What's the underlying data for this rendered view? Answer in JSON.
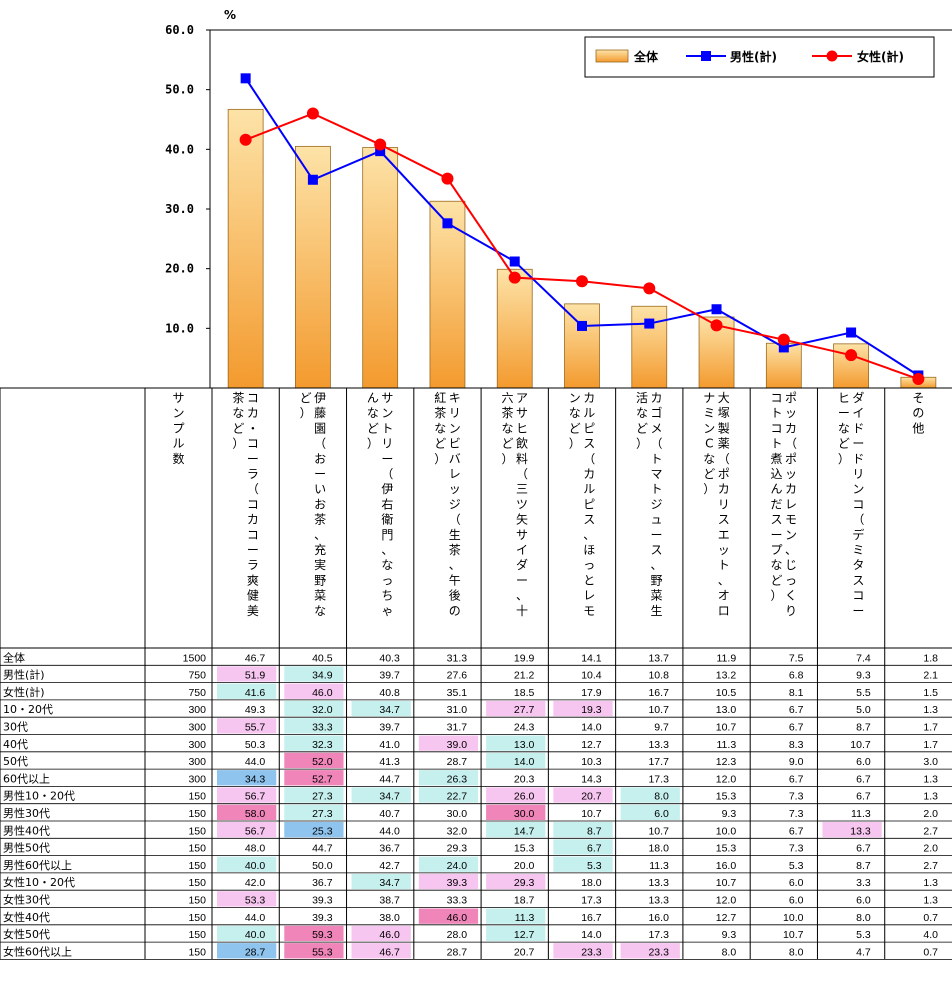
{
  "chart_data": {
    "type": "bar",
    "unit": "%",
    "ylim": [
      0,
      60
    ],
    "yticks": [
      "60.0",
      "50.0",
      "40.0",
      "30.0",
      "20.0",
      "10.0"
    ],
    "categories": [
      "コカ・コーラ（コカコーラ爽健美茶など）",
      "伊藤園（おーいお茶、充実野菜など）",
      "サントリー（伊右衛門、なっちゃんなど）",
      "キリンビバレッジ（生茶、午後の紅茶など）",
      "アサヒ飲料（三ツ矢サイダー、十六茶など）",
      "カルピス（カルピス、ほっとレモンなど）",
      "カゴメ（トマトジュース、野菜生活など）",
      "大塚製薬（ポカリスエット、オロナミンCなど）",
      "ポッカ（ポッカレモン、じっくりコトコト煮込んだスープなど）",
      "ダイドードリンコ（デミタスコーヒーなど）",
      "その他"
    ],
    "series": [
      {
        "name": "全体",
        "type": "bar",
        "color": "#f6a73c",
        "values": [
          46.7,
          40.5,
          40.3,
          31.3,
          19.9,
          14.1,
          13.7,
          11.9,
          7.5,
          7.4,
          1.8
        ]
      },
      {
        "name": "男性(計)",
        "type": "line",
        "color": "#0000ff",
        "marker": "square",
        "values": [
          51.9,
          34.9,
          39.7,
          27.6,
          21.2,
          10.4,
          10.8,
          13.2,
          6.8,
          9.3,
          2.1
        ]
      },
      {
        "name": "女性(計)",
        "type": "line",
        "color": "#ff0000",
        "marker": "circle",
        "values": [
          41.6,
          46.0,
          40.8,
          35.1,
          18.5,
          17.9,
          16.7,
          10.5,
          8.1,
          5.5,
          1.5
        ]
      }
    ],
    "legend_position": "top-right",
    "table": {
      "sample_header": "サンプル数",
      "rows": [
        {
          "label": "全体",
          "n": "1500",
          "values": [
            "46.7",
            "40.5",
            "40.3",
            "31.3",
            "19.9",
            "14.1",
            "13.7",
            "11.9",
            "7.5",
            "7.4",
            "1.8"
          ],
          "shading": [
            "",
            "",
            "",
            "",
            "",
            "",
            "",
            "",
            "",
            "",
            ""
          ]
        },
        {
          "label": "男性(計)",
          "n": "750",
          "values": [
            "51.9",
            "34.9",
            "39.7",
            "27.6",
            "21.2",
            "10.4",
            "10.8",
            "13.2",
            "6.8",
            "9.3",
            "2.1"
          ],
          "shading": [
            "p",
            "c",
            "",
            "",
            "",
            "",
            "",
            "",
            "",
            "",
            ""
          ]
        },
        {
          "label": "女性(計)",
          "n": "750",
          "values": [
            "41.6",
            "46.0",
            "40.8",
            "35.1",
            "18.5",
            "17.9",
            "16.7",
            "10.5",
            "8.1",
            "5.5",
            "1.5"
          ],
          "shading": [
            "c",
            "p",
            "",
            "",
            "",
            "",
            "",
            "",
            "",
            "",
            ""
          ]
        },
        {
          "label": "10・20代",
          "n": "300",
          "values": [
            "49.3",
            "32.0",
            "34.7",
            "31.0",
            "27.7",
            "19.3",
            "10.7",
            "13.0",
            "6.7",
            "5.0",
            "1.3"
          ],
          "shading": [
            "",
            "c",
            "c",
            "",
            "p",
            "p",
            "",
            "",
            "",
            "",
            ""
          ]
        },
        {
          "label": "30代",
          "n": "300",
          "values": [
            "55.7",
            "33.3",
            "39.7",
            "31.7",
            "24.3",
            "14.0",
            "9.7",
            "10.7",
            "6.7",
            "8.7",
            "1.7"
          ],
          "shading": [
            "p",
            "c",
            "",
            "",
            "",
            "",
            "",
            "",
            "",
            "",
            ""
          ]
        },
        {
          "label": "40代",
          "n": "300",
          "values": [
            "50.3",
            "32.3",
            "41.0",
            "39.0",
            "13.0",
            "12.7",
            "13.3",
            "11.3",
            "8.3",
            "10.7",
            "1.7"
          ],
          "shading": [
            "",
            "c",
            "",
            "p",
            "c",
            "",
            "",
            "",
            "",
            "",
            ""
          ]
        },
        {
          "label": "50代",
          "n": "300",
          "values": [
            "44.0",
            "52.0",
            "41.3",
            "28.7",
            "14.0",
            "10.3",
            "17.7",
            "12.3",
            "9.0",
            "6.0",
            "3.0"
          ],
          "shading": [
            "",
            "pd",
            "",
            "",
            "c",
            "",
            "",
            "",
            "",
            "",
            ""
          ]
        },
        {
          "label": "60代以上",
          "n": "300",
          "values": [
            "34.3",
            "52.7",
            "44.7",
            "26.3",
            "20.3",
            "14.3",
            "17.3",
            "12.0",
            "6.7",
            "6.7",
            "1.3"
          ],
          "shading": [
            "b",
            "pd",
            "",
            "c",
            "",
            "",
            "",
            "",
            "",
            "",
            ""
          ]
        },
        {
          "label": "男性10・20代",
          "n": "150",
          "values": [
            "56.7",
            "27.3",
            "34.7",
            "22.7",
            "26.0",
            "20.7",
            "8.0",
            "15.3",
            "7.3",
            "6.7",
            "1.3"
          ],
          "shading": [
            "p",
            "c",
            "c",
            "c",
            "p",
            "p",
            "c",
            "",
            "",
            "",
            ""
          ]
        },
        {
          "label": "男性30代",
          "n": "150",
          "values": [
            "58.0",
            "27.3",
            "40.7",
            "30.0",
            "30.0",
            "10.7",
            "6.0",
            "9.3",
            "7.3",
            "11.3",
            "2.0"
          ],
          "shading": [
            "pd",
            "c",
            "",
            "",
            "pd",
            "",
            "c",
            "",
            "",
            "",
            ""
          ]
        },
        {
          "label": "男性40代",
          "n": "150",
          "values": [
            "56.7",
            "25.3",
            "44.0",
            "32.0",
            "14.7",
            "8.7",
            "10.7",
            "10.0",
            "6.7",
            "13.3",
            "2.7"
          ],
          "shading": [
            "p",
            "b",
            "",
            "",
            "c",
            "c",
            "",
            "",
            "",
            "p",
            ""
          ]
        },
        {
          "label": "男性50代",
          "n": "150",
          "values": [
            "48.0",
            "44.7",
            "36.7",
            "29.3",
            "15.3",
            "6.7",
            "18.0",
            "15.3",
            "7.3",
            "6.7",
            "2.0"
          ],
          "shading": [
            "",
            "",
            "",
            "",
            "",
            "c",
            "",
            "",
            "",
            "",
            ""
          ]
        },
        {
          "label": "男性60代以上",
          "n": "150",
          "values": [
            "40.0",
            "50.0",
            "42.7",
            "24.0",
            "20.0",
            "5.3",
            "11.3",
            "16.0",
            "5.3",
            "8.7",
            "2.7"
          ],
          "shading": [
            "c",
            "",
            "",
            "c",
            "",
            "c",
            "",
            "",
            "",
            "",
            ""
          ]
        },
        {
          "label": "女性10・20代",
          "n": "150",
          "values": [
            "42.0",
            "36.7",
            "34.7",
            "39.3",
            "29.3",
            "18.0",
            "13.3",
            "10.7",
            "6.0",
            "3.3",
            "1.3"
          ],
          "shading": [
            "",
            "",
            "c",
            "p",
            "p",
            "",
            "",
            "",
            "",
            "",
            ""
          ]
        },
        {
          "label": "女性30代",
          "n": "150",
          "values": [
            "53.3",
            "39.3",
            "38.7",
            "33.3",
            "18.7",
            "17.3",
            "13.3",
            "12.0",
            "6.0",
            "6.0",
            "1.3"
          ],
          "shading": [
            "p",
            "",
            "",
            "",
            "",
            "",
            "",
            "",
            "",
            "",
            ""
          ]
        },
        {
          "label": "女性40代",
          "n": "150",
          "values": [
            "44.0",
            "39.3",
            "38.0",
            "46.0",
            "11.3",
            "16.7",
            "16.0",
            "12.7",
            "10.0",
            "8.0",
            "0.7"
          ],
          "shading": [
            "",
            "",
            "",
            "pd",
            "c",
            "",
            "",
            "",
            "",
            "",
            ""
          ]
        },
        {
          "label": "女性50代",
          "n": "150",
          "values": [
            "40.0",
            "59.3",
            "46.0",
            "28.0",
            "12.7",
            "14.0",
            "17.3",
            "9.3",
            "10.7",
            "5.3",
            "4.0"
          ],
          "shading": [
            "c",
            "pd",
            "p",
            "",
            "c",
            "",
            "",
            "",
            "",
            "",
            ""
          ]
        },
        {
          "label": "女性60代以上",
          "n": "150",
          "values": [
            "28.7",
            "55.3",
            "46.7",
            "28.7",
            "20.7",
            "23.3",
            "23.3",
            "8.0",
            "8.0",
            "4.7",
            "0.7"
          ],
          "shading": [
            "b",
            "pd",
            "p",
            "",
            "",
            "p",
            "p",
            "",
            "",
            "",
            ""
          ]
        }
      ]
    }
  },
  "legend": {
    "bar_label": "全体",
    "male_label": "男性(計)",
    "female_label": "女性(計)"
  },
  "colors": {
    "bar_top": "#fde3a8",
    "bar_bottom": "#f39a2e",
    "male": "#0000ff",
    "female": "#ff0000",
    "shade_pink": "#f7c6f0",
    "shade_pink_dark": "#ef85b8",
    "shade_cyan": "#c6f0ee",
    "shade_blue": "#8fc4ef"
  }
}
